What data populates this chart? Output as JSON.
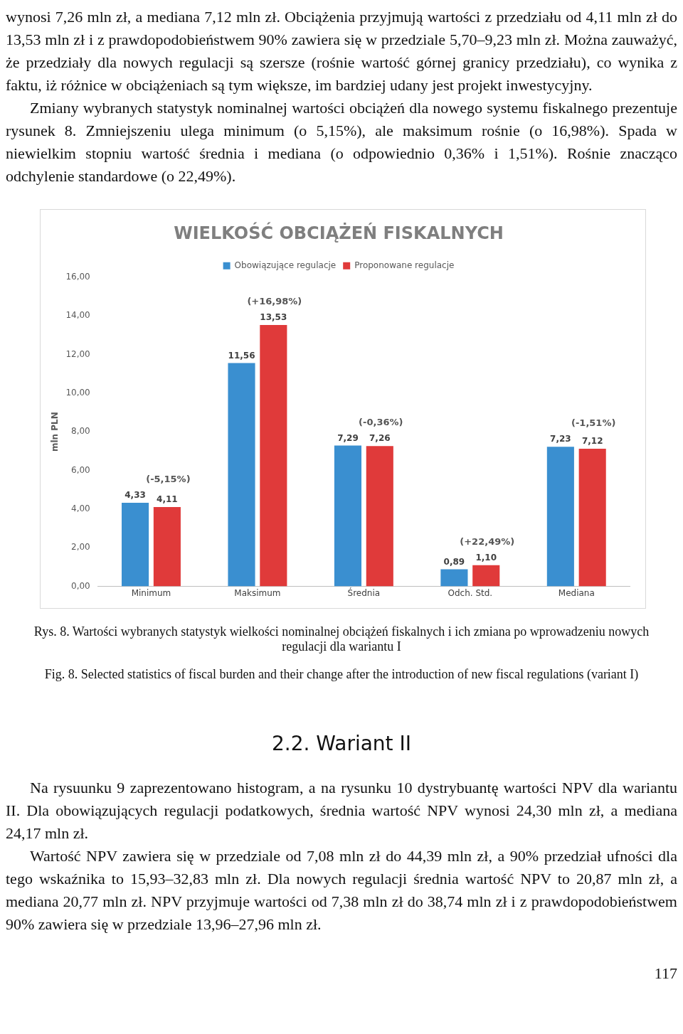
{
  "chart_data": {
    "type": "bar",
    "title": "WIELKOŚĆ OBCIĄŻEŃ FISKALNYCH",
    "ylabel": "mln PLN",
    "categories": [
      "Minimum",
      "Maksimum",
      "Średnia",
      "Odch. Std.",
      "Mediana"
    ],
    "series": [
      {
        "name": "Obowiązujące regulacje",
        "color": "#3a8fd0",
        "values": [
          4.33,
          11.56,
          7.29,
          0.89,
          7.23
        ],
        "value_labels": [
          "4,33",
          "11,56",
          "7,29",
          "0,89",
          "7,23"
        ]
      },
      {
        "name": "Proponowane regulacje",
        "color": "#e03a3a",
        "values": [
          4.11,
          13.53,
          7.26,
          1.1,
          7.12
        ],
        "value_labels": [
          "4,11",
          "13,53",
          "7,26",
          "1,10",
          "7,12"
        ]
      }
    ],
    "ylim": [
      0,
      16
    ],
    "yticks": [
      {
        "value": 0,
        "label": "0,00"
      },
      {
        "value": 2,
        "label": "2,00"
      },
      {
        "value": 4,
        "label": "4,00"
      },
      {
        "value": 6,
        "label": "6,00"
      },
      {
        "value": 8,
        "label": "8,00"
      },
      {
        "value": 10,
        "label": "10,00"
      },
      {
        "value": 12,
        "label": "12,00"
      },
      {
        "value": 14,
        "label": "14,00"
      },
      {
        "value": 16,
        "label": "16,00"
      }
    ],
    "grid": false,
    "legend": "top",
    "annotations": [
      "wynosi 7,26 mln zł, a mediana 7,12 mln zł. Obciążenia przyjmują wartości z przedziału od 4,11 mln zł do 13,53 mln zł i z prawdopodobieństwem 90% zawiera się w przedziale 5,70–9,23 mln zł. Można zauważyć, że przedziały dla nowych regulacji są szersze (rośnie wartość górnej granicy przedziału), co wynika z faktu, iż różnice w obciążeniach są tym większe, im bardziej udany jest projekt inwestycyjny.",
      "Zmiany wybranych statystyk nominalnej wartości obciążeń dla nowego systemu fiskalnego prezentuje rysunek 8. Zmniejszeniu ulega minimum (o 5,15%), ale maksimum rośnie (o 16,98%). Spada w niewielkim stopniu wartość średnia i mediana (o odpowiednio 0,36% i 1,51%). Rośnie znacząco odchylenie standardowe (o 22,49%).",
      "(-5,15%)",
      "(+16,98%)",
      "(-0,36%)",
      "(+22,49%)",
      "(-1,51%)",
      "Rys. 8. Wartości wybranych statystyk wielkości nominalnej obciążeń fiskalnych i ich zmiana po wprowadzeniu nowych regulacji dla wariantu I",
      "Fig. 8. Selected statistics of fiscal burden and their change after the introduction of new fiscal regulations (variant I)",
      "2.2. Wariant II",
      "Na rysuunku 9 zaprezentowano histogram, a na rysunku 10 dystrybuantę wartości NPV dla wariantu II. Dla obowiązujących regulacji podatkowych, średnia wartość NPV wynosi 24,30 mln zł, a mediana 24,17 mln zł.",
      "Wartość NPV zawiera się w przedziale od 7,08 mln zł do 44,39 mln zł, a 90% przedział ufności dla tego wskaźnika to 15,93–32,83 mln zł. Dla nowych regulacji średnia wartość NPV to 20,87 mln zł, a mediana 20,77 mln zł. NPV przyjmuje wartości od 7,38 mln zł do 38,74 mln zł i z prawdopodobieństwem 90% zawiera się w przedziale 13,96–27,96 mln zł.",
      "117"
    ]
  }
}
